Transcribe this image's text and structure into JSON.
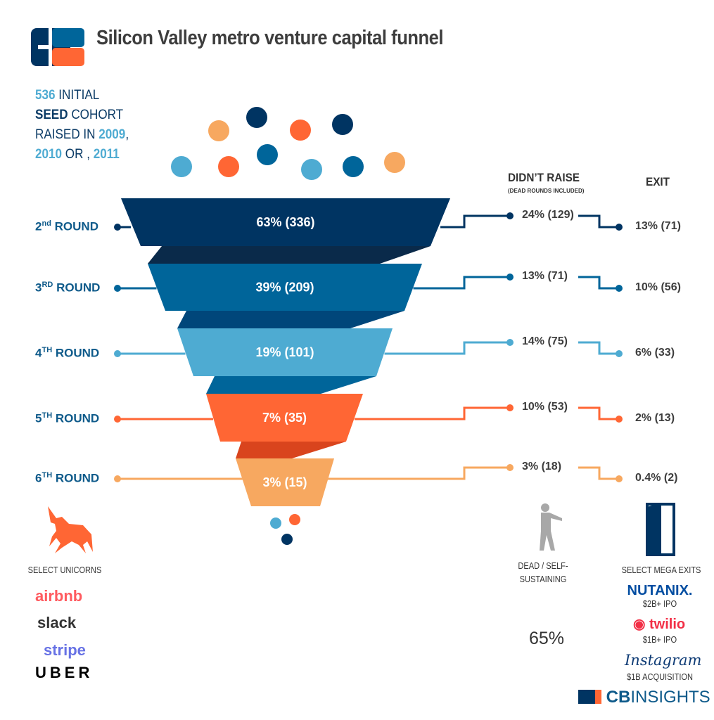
{
  "title": "Silicon Valley metro venture capital funnel",
  "cohort": {
    "count": "536",
    "l1": " INITIAL",
    "seed": "SEED",
    "l2": " COHORT",
    "l3": "RAISED IN ",
    "y1": "2009",
    "comma": ",",
    "y2": "2010",
    "or": " OR , ",
    "y3": "2011"
  },
  "headers": {
    "didnt_raise": "DIDN’T RAISE",
    "didnt_raise_sub": "(DEAD ROUNDS INCLUDED)",
    "exit": "EXIT"
  },
  "colors": {
    "navy": "#003462",
    "blue": "#00659a",
    "light_blue": "#4eabd2",
    "orange": "#ff6634",
    "peach": "#f7a860"
  },
  "rounds": [
    {
      "num": "2",
      "suffix": "nd",
      "label": " ROUND",
      "funnel": "63% (336)",
      "didnt_raise": "24% (129)",
      "exit": "13% (71)",
      "color": "#003462"
    },
    {
      "num": "3",
      "suffix": "RD",
      "label": " ROUND",
      "funnel": "39% (209)",
      "didnt_raise": "13% (71)",
      "exit": "10% (56)",
      "color": "#00659a"
    },
    {
      "num": "4",
      "suffix": "TH",
      "label": " ROUND",
      "funnel": "19% (101)",
      "didnt_raise": "14% (75)",
      "exit": "6% (33)",
      "color": "#4eabd2"
    },
    {
      "num": "5",
      "suffix": "TH",
      "label": " ROUND",
      "funnel": "7% (35)",
      "didnt_raise": "10% (53)",
      "exit": "2% (13)",
      "color": "#ff6634"
    },
    {
      "num": "6",
      "suffix": "TH",
      "label": " ROUND",
      "funnel": "3% (15)",
      "didnt_raise": "3% (18)",
      "exit": "0.4% (2)",
      "color": "#f7a860"
    }
  ],
  "unicorns": {
    "title": "SELECT UNICORNS",
    "logos": [
      "airbnb",
      "slack",
      "stripe",
      "UBER"
    ]
  },
  "dead": {
    "title_l1": "DEAD / SELF-",
    "title_l2": "SUSTAINING",
    "pct": "65%"
  },
  "exits": {
    "title": "SELECT MEGA EXITS",
    "items": [
      {
        "logo": "NUTANIX.",
        "note": "$2B+ IPO"
      },
      {
        "logo": "twilio",
        "note": "$1B+ IPO"
      },
      {
        "logo": "Instagram",
        "note": "$1B ACQUISITION"
      }
    ]
  },
  "brand": {
    "cb": "CB",
    "insights": "INSIGHTS"
  }
}
